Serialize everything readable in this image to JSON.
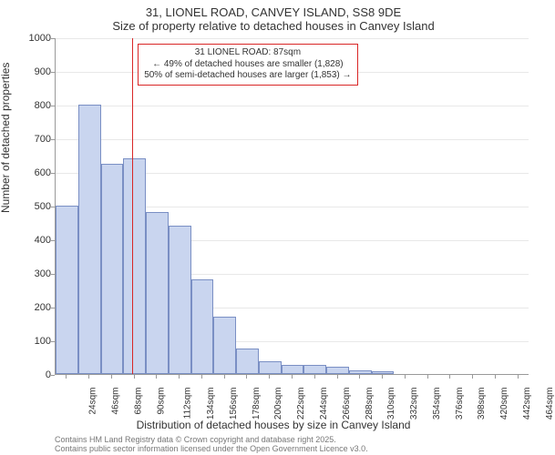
{
  "header": {
    "line1": "31, LIONEL ROAD, CANVEY ISLAND, SS8 9DE",
    "line2": "Size of property relative to detached houses in Canvey Island"
  },
  "chart": {
    "type": "histogram",
    "x_categories": [
      "24sqm",
      "46sqm",
      "68sqm",
      "90sqm",
      "112sqm",
      "134sqm",
      "156sqm",
      "178sqm",
      "200sqm",
      "222sqm",
      "244sqm",
      "266sqm",
      "288sqm",
      "310sqm",
      "332sqm",
      "354sqm",
      "376sqm",
      "398sqm",
      "420sqm",
      "442sqm",
      "464sqm"
    ],
    "values": [
      500,
      800,
      625,
      640,
      480,
      440,
      280,
      170,
      75,
      38,
      28,
      28,
      22,
      10,
      8,
      2,
      0,
      0,
      0,
      0,
      0
    ],
    "bar_count": 21,
    "bar_fill": "#c9d5ef",
    "bar_stroke": "#7a8fc4",
    "background_color": "#ffffff",
    "grid_color": "#e8e8e8",
    "axis_color": "#999999",
    "text_color": "#333333",
    "ylim": [
      0,
      1000
    ],
    "ytick_step": 100,
    "yticks": [
      0,
      100,
      200,
      300,
      400,
      500,
      600,
      700,
      800,
      900,
      1000
    ],
    "ylabel": "Number of detached properties",
    "xlabel": "Distribution of detached houses by size in Canvey Island",
    "title_fontsize": 13,
    "label_fontsize": 12,
    "tick_fontsize": 11,
    "xtick_fontsize": 10,
    "marker": {
      "position_index": 2.9,
      "color": "#d92626"
    },
    "annotation": {
      "line1": "31 LIONEL ROAD: 87sqm",
      "line2": "← 49% of detached houses are smaller (1,828)",
      "line3": "50% of semi-detached houses are larger (1,853) →",
      "border_color": "#d92626"
    }
  },
  "footer": {
    "line1": "Contains HM Land Registry data © Crown copyright and database right 2025.",
    "line2": "Contains public sector information licensed under the Open Government Licence v3.0."
  }
}
